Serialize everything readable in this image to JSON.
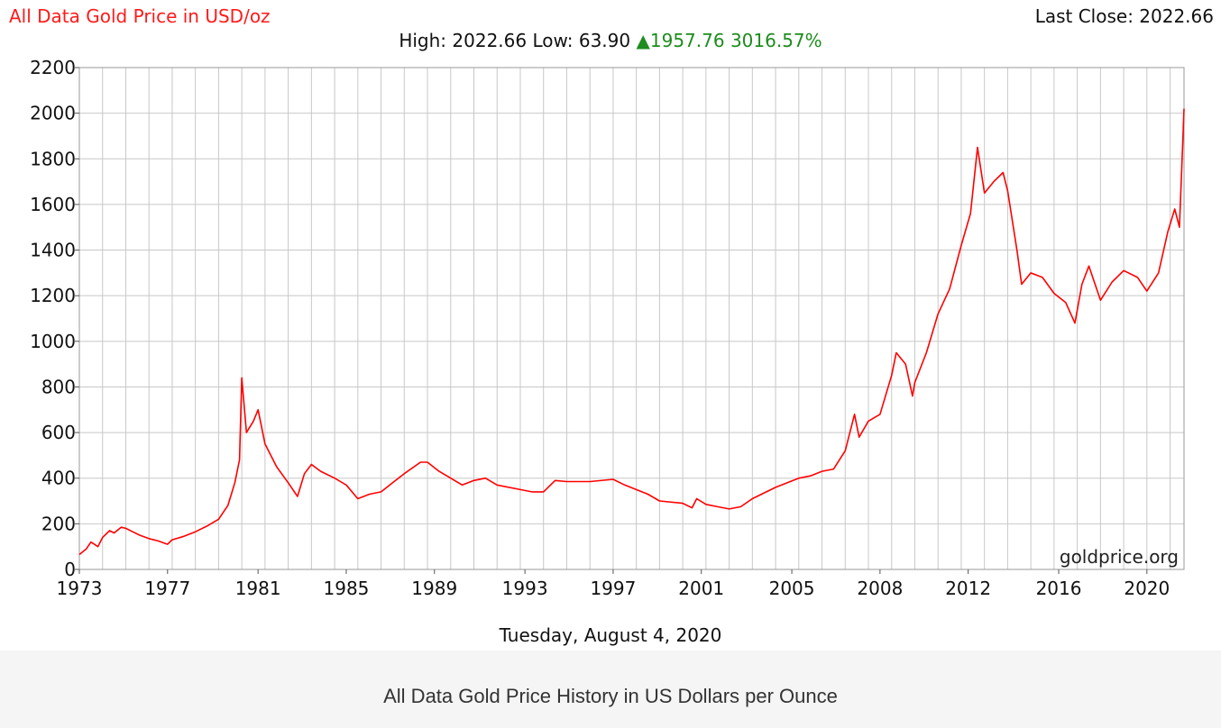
{
  "header": {
    "title": "All Data Gold Price in USD/oz",
    "last_close_label": "Last Close: 2022.66",
    "high_label": "High: 2022.66",
    "low_label": "Low: 63.90",
    "change_arrow": "▲",
    "change_value": "1957.76",
    "change_percent": "3016.57%"
  },
  "watermark": "goldprice.org",
  "date_label": "Tuesday, August 4, 2020",
  "caption": "All Data Gold Price History in US Dollars per Ounce",
  "colors": {
    "line": "#ff0000",
    "title": "#ff1a1a",
    "change": "#1e8c1e",
    "grid": "#c8c8c8"
  },
  "chart_data": {
    "type": "line",
    "title": "All Data Gold Price in USD/oz",
    "xlabel": "",
    "ylabel": "USD/oz",
    "xlim": [
      1973.0,
      2020.6
    ],
    "ylim": [
      0,
      2200
    ],
    "grid": true,
    "y_ticks": [
      0,
      200,
      400,
      600,
      800,
      1000,
      1200,
      1400,
      1600,
      1800,
      2000,
      2200
    ],
    "x_ticks": [
      {
        "label": "1973",
        "value": 1973.0
      },
      {
        "label": "1977",
        "value": 1976.8
      },
      {
        "label": "1981",
        "value": 1980.7
      },
      {
        "label": "1985",
        "value": 1984.5
      },
      {
        "label": "1989",
        "value": 1988.3
      },
      {
        "label": "1993",
        "value": 1992.2
      },
      {
        "label": "1997",
        "value": 1996.0
      },
      {
        "label": "2001",
        "value": 1999.8
      },
      {
        "label": "2005",
        "value": 2003.7
      },
      {
        "label": "2008",
        "value": 2007.5
      },
      {
        "label": "2012",
        "value": 2011.3
      },
      {
        "label": "2016",
        "value": 2015.2
      },
      {
        "label": "2020",
        "value": 2019.0
      }
    ],
    "series": [
      {
        "name": "Gold Price USD/oz",
        "x": [
          1973.0,
          1973.3,
          1973.5,
          1973.8,
          1974.0,
          1974.3,
          1974.5,
          1974.8,
          1975.0,
          1975.3,
          1975.6,
          1976.0,
          1976.4,
          1976.8,
          1977.0,
          1977.5,
          1978.0,
          1978.5,
          1979.0,
          1979.4,
          1979.7,
          1979.9,
          1980.0,
          1980.2,
          1980.5,
          1980.7,
          1981.0,
          1981.5,
          1982.0,
          1982.4,
          1982.7,
          1983.0,
          1983.4,
          1984.0,
          1984.5,
          1985.0,
          1985.5,
          1986.0,
          1986.5,
          1987.0,
          1987.7,
          1988.0,
          1988.5,
          1989.0,
          1989.5,
          1990.0,
          1990.5,
          1991.0,
          1992.0,
          1992.5,
          1993.0,
          1993.5,
          1994.0,
          1995.0,
          1996.0,
          1996.5,
          1997.0,
          1997.5,
          1998.0,
          1999.0,
          1999.4,
          1999.6,
          2000.0,
          2000.5,
          2001.0,
          2001.5,
          2002.0,
          2003.0,
          2004.0,
          2004.5,
          2005.0,
          2005.5,
          2006.0,
          2006.4,
          2006.6,
          2007.0,
          2007.5,
          2008.0,
          2008.2,
          2008.6,
          2008.9,
          2009.0,
          2009.5,
          2010.0,
          2010.5,
          2011.0,
          2011.4,
          2011.7,
          2012.0,
          2012.4,
          2012.8,
          2013.0,
          2013.4,
          2013.6,
          2014.0,
          2014.5,
          2015.0,
          2015.5,
          2015.9,
          2016.2,
          2016.5,
          2017.0,
          2017.5,
          2018.0,
          2018.6,
          2019.0,
          2019.5,
          2019.9,
          2020.2,
          2020.4,
          2020.5,
          2020.6
        ],
        "y": [
          65,
          90,
          120,
          100,
          140,
          170,
          160,
          185,
          180,
          165,
          150,
          135,
          125,
          110,
          130,
          145,
          165,
          190,
          220,
          280,
          380,
          480,
          840,
          600,
          650,
          700,
          550,
          450,
          380,
          320,
          420,
          460,
          430,
          400,
          370,
          310,
          330,
          340,
          380,
          420,
          470,
          470,
          430,
          400,
          370,
          390,
          400,
          370,
          350,
          340,
          340,
          390,
          385,
          385,
          395,
          370,
          350,
          330,
          300,
          290,
          270,
          310,
          285,
          275,
          265,
          275,
          310,
          360,
          400,
          410,
          430,
          440,
          520,
          680,
          580,
          650,
          680,
          850,
          950,
          900,
          760,
          820,
          950,
          1120,
          1230,
          1420,
          1560,
          1850,
          1650,
          1700,
          1740,
          1660,
          1400,
          1250,
          1300,
          1280,
          1210,
          1170,
          1080,
          1250,
          1330,
          1180,
          1260,
          1310,
          1280,
          1220,
          1300,
          1480,
          1580,
          1500,
          1750,
          2020
        ]
      }
    ]
  }
}
